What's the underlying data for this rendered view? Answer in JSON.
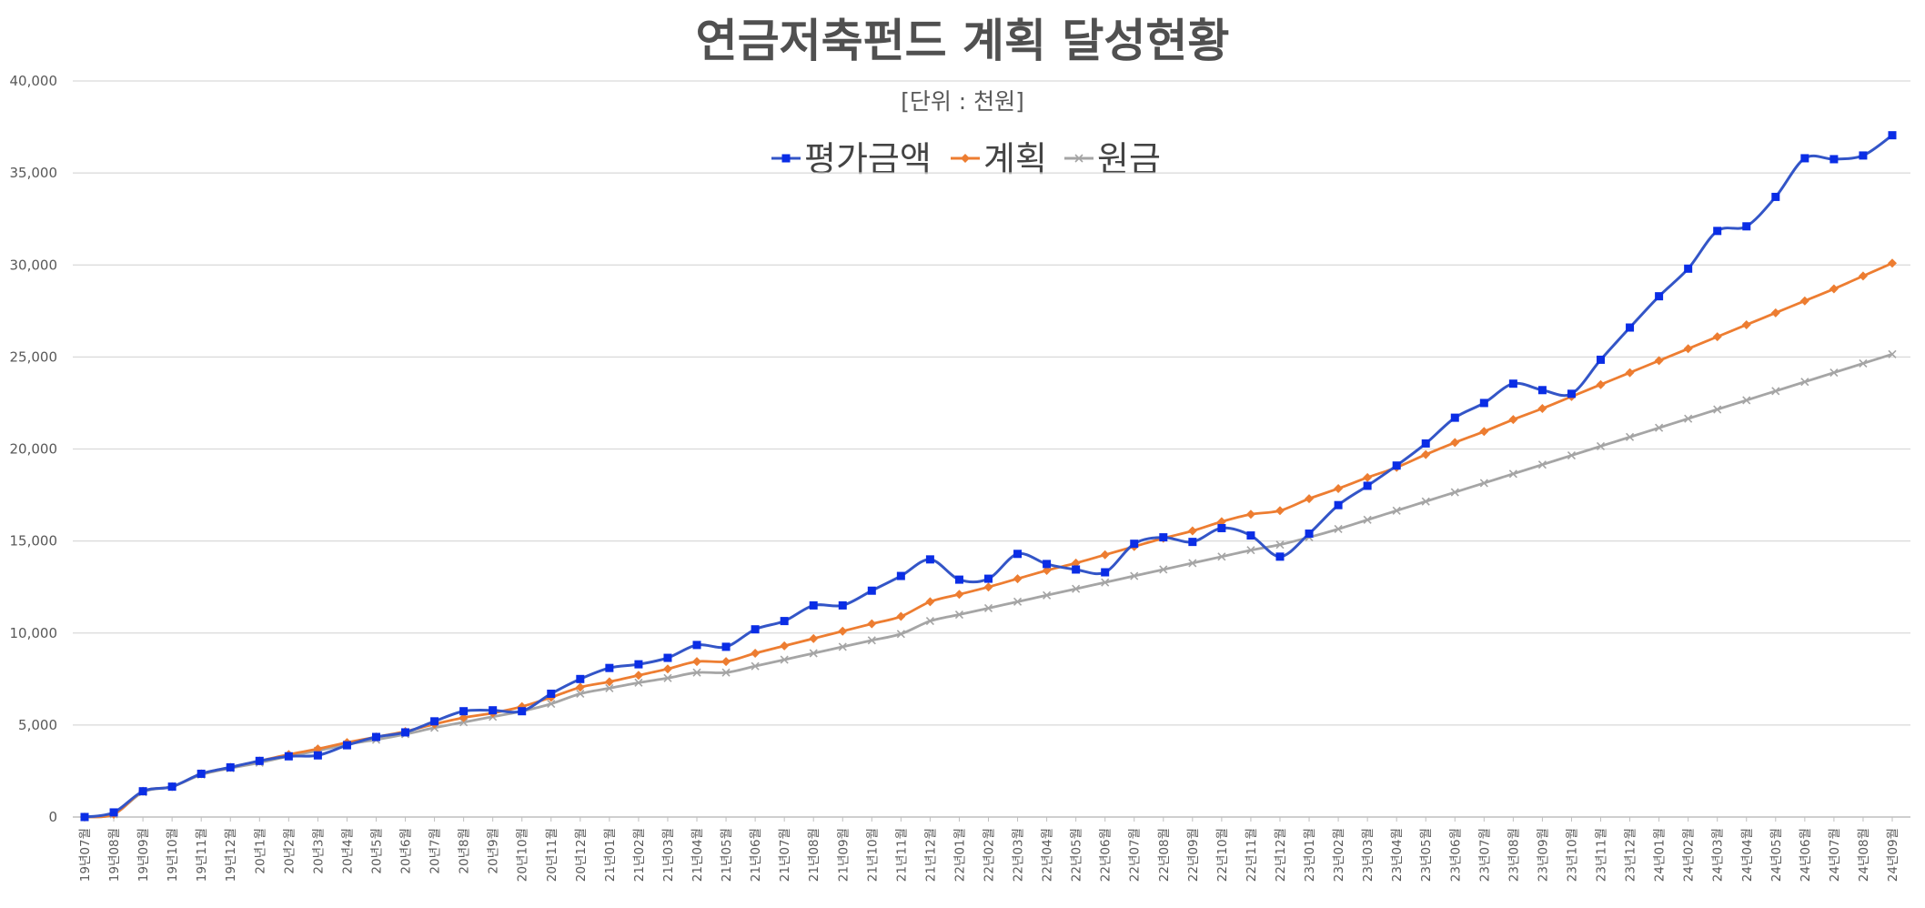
{
  "colors": {
    "series_eval": "#3355c7",
    "series_eval_marker": "#0a2de6",
    "series_plan": "#ed7d31",
    "series_principal": "#a5a5a5",
    "grid": "#d9d9d9",
    "text": "#595959",
    "title": "#505050"
  },
  "chart_data": {
    "type": "line",
    "title": "연금저축펀드 계획 달성현황",
    "subtitle": "[단위 : 천원]",
    "xlabel": "",
    "ylabel": "",
    "ylim": [
      0,
      40000
    ],
    "y_ticks": [
      0,
      5000,
      10000,
      15000,
      20000,
      25000,
      30000,
      35000,
      40000
    ],
    "y_tick_labels": [
      "0",
      "5,000",
      "10,000",
      "15,000",
      "20,000",
      "25,000",
      "30,000",
      "35,000",
      "40,000"
    ],
    "grid": true,
    "legend_position": "top-center",
    "categories": [
      "19년07월",
      "19년08월",
      "19년09월",
      "19년10월",
      "19년11월",
      "19년12월",
      "20년1월",
      "20년2월",
      "20년3월",
      "20년4월",
      "20년5월",
      "20년6월",
      "20년7월",
      "20년8월",
      "20년9월",
      "20년10월",
      "20년11월",
      "20년12월",
      "21년01월",
      "21년02월",
      "21년03월",
      "21년04월",
      "21년05월",
      "21년06월",
      "21년07월",
      "21년08월",
      "21년09월",
      "21년10월",
      "21년11월",
      "21년12월",
      "22년01월",
      "22년02월",
      "22년03월",
      "22년04월",
      "22년05월",
      "22년06월",
      "22년07월",
      "22년08월",
      "22년09월",
      "22년10월",
      "22년11월",
      "22년12월",
      "23년01월",
      "23년02월",
      "23년03월",
      "23년04월",
      "23년05월",
      "23년06월",
      "23년07월",
      "23년08월",
      "23년09월",
      "23년10월",
      "23년11월",
      "23년12월",
      "24년01월",
      "24년02월",
      "24년03월",
      "24년04월",
      "24년05월",
      "24년06월",
      "24년07월",
      "24년08월",
      "24년09월"
    ],
    "series": [
      {
        "name": "평가금액",
        "color": "#3355c7",
        "marker": "square",
        "values": [
          0,
          250,
          1400,
          1650,
          2350,
          2700,
          3050,
          3300,
          3350,
          3900,
          4350,
          4600,
          5200,
          5750,
          5800,
          5750,
          6700,
          7500,
          8100,
          8300,
          8650,
          9350,
          9250,
          10200,
          10650,
          11500,
          11500,
          12300,
          13100,
          14000,
          12900,
          12950,
          14300,
          13750,
          13450,
          13300,
          14850,
          15200,
          14950,
          15700,
          15300,
          14150,
          15400,
          16950,
          18000,
          19100,
          20300,
          21700,
          22500,
          23550,
          23200,
          23000,
          24850,
          26600,
          28300,
          29800,
          31850,
          32100,
          33700,
          35800,
          35750,
          35950,
          37050
        ]
      },
      {
        "name": "계획",
        "color": "#ed7d31",
        "marker": "diamond",
        "values": [
          0,
          150,
          1400,
          1650,
          2350,
          2700,
          3050,
          3400,
          3700,
          4050,
          4350,
          4650,
          5050,
          5400,
          5650,
          6000,
          6500,
          7050,
          7350,
          7700,
          8050,
          8450,
          8450,
          8900,
          9300,
          9700,
          10100,
          10500,
          10900,
          11700,
          12100,
          12500,
          12950,
          13400,
          13800,
          14250,
          14700,
          15150,
          15550,
          16050,
          16450,
          16650,
          17300,
          17850,
          18450,
          19000,
          19700,
          20350,
          20950,
          21600,
          22200,
          22850,
          23500,
          24150,
          24800,
          25450,
          26100,
          26750,
          27400,
          28050,
          28700,
          29400,
          30100
        ]
      },
      {
        "name": "원금",
        "color": "#a5a5a5",
        "marker": "x",
        "values": [
          0,
          150,
          1350,
          1650,
          2300,
          2650,
          2950,
          3300,
          3600,
          3950,
          4200,
          4500,
          4850,
          5150,
          5450,
          5750,
          6150,
          6700,
          7000,
          7300,
          7550,
          7850,
          7850,
          8200,
          8550,
          8900,
          9250,
          9600,
          9950,
          10650,
          11000,
          11350,
          11700,
          12050,
          12400,
          12750,
          13100,
          13450,
          13800,
          14150,
          14500,
          14800,
          15200,
          15650,
          16150,
          16650,
          17150,
          17650,
          18150,
          18650,
          19150,
          19650,
          20150,
          20650,
          21150,
          21650,
          22150,
          22650,
          23150,
          23650,
          24150,
          24650,
          25150
        ]
      }
    ]
  }
}
